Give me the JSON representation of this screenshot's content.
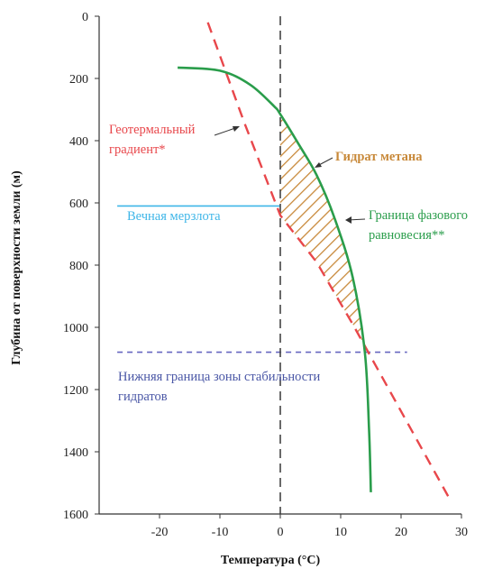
{
  "chart_data": {
    "type": "line",
    "xlabel": "Температура (°C)",
    "ylabel": "Глубина от поверхности земли (м)",
    "xlim": [
      -30,
      30
    ],
    "ylim": [
      1600,
      0
    ],
    "x_ticks": [
      "-20",
      "-10",
      "0",
      "10",
      "20",
      "30"
    ],
    "y_ticks": [
      "0",
      "200",
      "400",
      "600",
      "800",
      "1000",
      "1200",
      "1400",
      "1600"
    ],
    "series": [
      {
        "name": "Геотермальный градиент*",
        "style": "dashed",
        "color": "#e8474b",
        "x": [
          -12,
          -6,
          0,
          6,
          12,
          18,
          24,
          28
        ],
        "y": [
          20,
          340,
          640,
          790,
          990,
          1200,
          1410,
          1550
        ]
      },
      {
        "name": "Граница фазового равновесия**",
        "style": "solid",
        "color": "#2a9d4b",
        "x": [
          -17,
          -10,
          -5,
          -1,
          0,
          3,
          6,
          9,
          12,
          14,
          14.7,
          15
        ],
        "y": [
          165,
          175,
          220,
          290,
          315,
          410,
          510,
          650,
          840,
          1080,
          1330,
          1530
        ]
      }
    ],
    "reference_lines": [
      {
        "label": "Вечная мерзлота",
        "orientation": "horizontal",
        "y": 610,
        "x_range": [
          -27,
          0
        ],
        "style": "solid",
        "color": "#3fb6e8"
      },
      {
        "label": "Нижняя граница зоны стабильности гидратов",
        "orientation": "horizontal",
        "y": 1080,
        "x_range": [
          -27,
          21
        ],
        "style": "dashed",
        "color": "#6666c0"
      },
      {
        "label": "",
        "orientation": "vertical",
        "x": 0,
        "y_range": [
          0,
          1600
        ],
        "style": "dashed",
        "color": "#444444"
      }
    ],
    "shaded_region": {
      "label": "Гидрат метана",
      "pattern": "diagonal-hatch",
      "color": "#c8893a",
      "bounds": "x >= 0, between geothermal gradient and phase boundary, y from 315 to 1080"
    },
    "annotations": {
      "geo_line1": "Геотермальный",
      "geo_line2": "градиент*",
      "hydrate": "Гидрат метана",
      "phase_line1": "Граница фазового",
      "phase_line2": "равновесия**",
      "permafrost": "Вечная мерзлота",
      "bottom_line1": "Нижняя граница зоны стабильности",
      "bottom_line2": "гидратов"
    },
    "grid": false,
    "legend": "none"
  }
}
